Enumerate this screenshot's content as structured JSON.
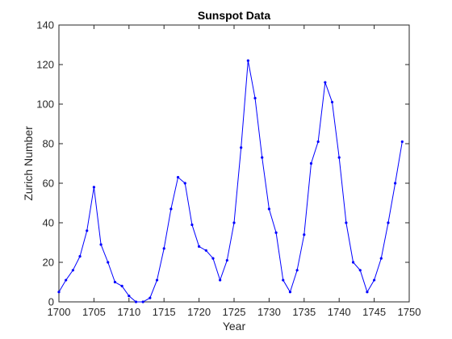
{
  "chart_data": {
    "type": "line",
    "title": "Sunspot Data",
    "xlabel": "Year",
    "ylabel": "Zurich Number",
    "xlim": [
      1700,
      1750
    ],
    "ylim": [
      0,
      140
    ],
    "xticks": [
      1700,
      1705,
      1710,
      1715,
      1720,
      1725,
      1730,
      1735,
      1740,
      1745,
      1750
    ],
    "yticks": [
      0,
      20,
      40,
      60,
      80,
      100,
      120,
      140
    ],
    "grid": false,
    "legend": "none",
    "line_color": "#0000ff",
    "x": [
      1700,
      1701,
      1702,
      1703,
      1704,
      1705,
      1706,
      1707,
      1708,
      1709,
      1710,
      1711,
      1712,
      1713,
      1714,
      1715,
      1716,
      1717,
      1718,
      1719,
      1720,
      1721,
      1722,
      1723,
      1724,
      1725,
      1726,
      1727,
      1728,
      1729,
      1730,
      1731,
      1732,
      1733,
      1734,
      1735,
      1736,
      1737,
      1738,
      1739,
      1740,
      1741,
      1742,
      1743,
      1744,
      1745,
      1746,
      1747,
      1748,
      1749
    ],
    "series": [
      {
        "values": [
          5,
          11,
          16,
          23,
          36,
          58,
          29,
          20,
          10,
          8,
          3,
          0,
          0,
          2,
          11,
          27,
          47,
          63,
          60,
          39,
          28,
          26,
          22,
          11,
          21,
          40,
          78,
          122,
          103,
          73,
          47,
          35,
          11,
          5,
          16,
          34,
          70,
          81,
          111,
          101,
          73,
          40,
          20,
          16,
          5,
          11,
          22,
          40,
          60,
          81
        ]
      }
    ]
  }
}
